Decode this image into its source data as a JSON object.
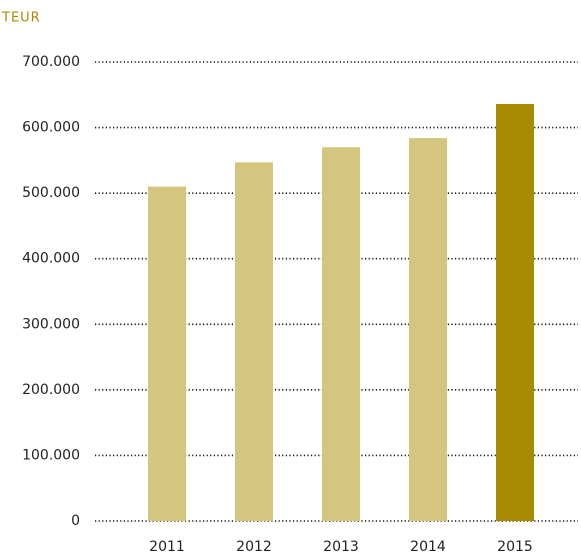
{
  "chart_data": {
    "type": "bar",
    "y_label": "TEUR",
    "categories": [
      "2011",
      "2012",
      "2013",
      "2014",
      "2015"
    ],
    "values": [
      510000,
      547000,
      570000,
      584000,
      636000
    ],
    "colors": [
      "#d4c67e",
      "#d4c67e",
      "#d4c67e",
      "#d4c67e",
      "#a88b00"
    ],
    "label_color": "#a88b00",
    "ylim": [
      0,
      700000
    ],
    "yticks": [
      0,
      {
        "value": 100000,
        "label": "100.000"
      },
      {
        "value": 200000,
        "label": "200.000"
      },
      {
        "value": 300000,
        "label": "300.000"
      },
      {
        "value": 400000,
        "label": "400.000"
      },
      {
        "value": 500000,
        "label": "500.000"
      },
      {
        "value": 600000,
        "label": "600.000"
      },
      {
        "value": 700000,
        "label": "700.000"
      }
    ],
    "grid": true
  }
}
